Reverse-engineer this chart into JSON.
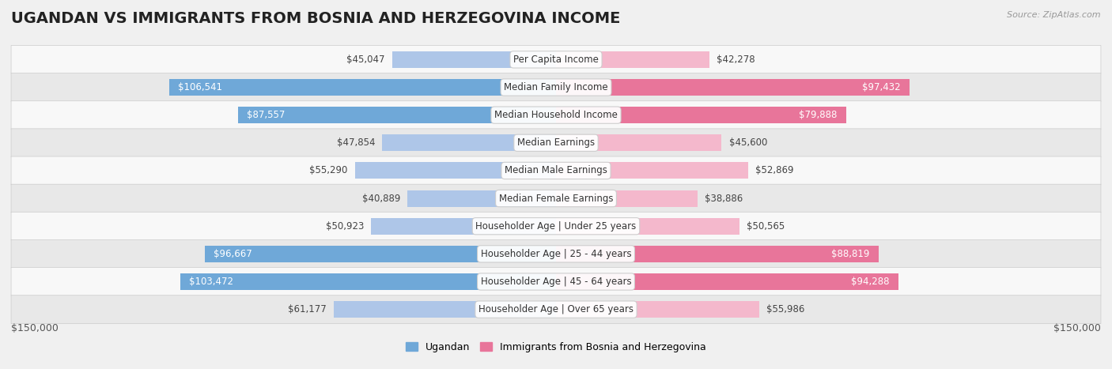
{
  "title": "UGANDAN VS IMMIGRANTS FROM BOSNIA AND HERZEGOVINA INCOME",
  "source": "Source: ZipAtlas.com",
  "categories": [
    "Per Capita Income",
    "Median Family Income",
    "Median Household Income",
    "Median Earnings",
    "Median Male Earnings",
    "Median Female Earnings",
    "Householder Age | Under 25 years",
    "Householder Age | 25 - 44 years",
    "Householder Age | 45 - 64 years",
    "Householder Age | Over 65 years"
  ],
  "ugandan_values": [
    45047,
    106541,
    87557,
    47854,
    55290,
    40889,
    50923,
    96667,
    103472,
    61177
  ],
  "bosnian_values": [
    42278,
    97432,
    79888,
    45600,
    52869,
    38886,
    50565,
    88819,
    94288,
    55986
  ],
  "ugandan_labels": [
    "$45,047",
    "$106,541",
    "$87,557",
    "$47,854",
    "$55,290",
    "$40,889",
    "$50,923",
    "$96,667",
    "$103,472",
    "$61,177"
  ],
  "bosnian_labels": [
    "$42,278",
    "$97,432",
    "$79,888",
    "$45,600",
    "$52,869",
    "$38,886",
    "$50,565",
    "$88,819",
    "$94,288",
    "$55,986"
  ],
  "max_value": 150000,
  "ugandan_color_light": "#aec6e8",
  "ugandan_color_dark": "#6fa8d8",
  "bosnian_color_light": "#f4b8cc",
  "bosnian_color_dark": "#e8759a",
  "inside_label_threshold": 75000,
  "background_color": "#f0f0f0",
  "row_color_odd": "#f8f8f8",
  "row_color_even": "#e8e8e8",
  "legend_ugandan": "Ugandan",
  "legend_bosnian": "Immigrants from Bosnia and Herzegovina",
  "x_label_left": "$150,000",
  "x_label_right": "$150,000",
  "title_fontsize": 14,
  "label_fontsize": 8.5,
  "category_fontsize": 8.5,
  "bar_height": 0.6
}
